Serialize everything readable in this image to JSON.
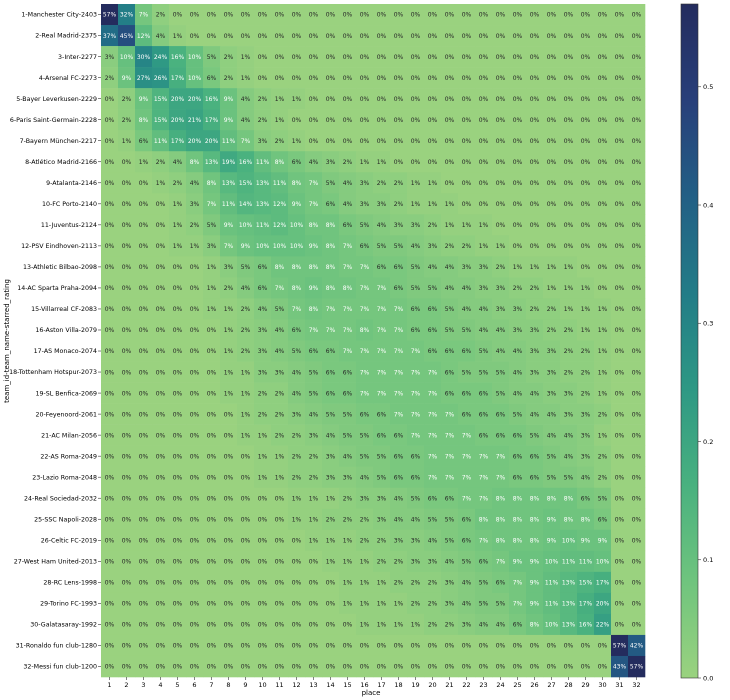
{
  "chart_data": {
    "type": "heatmap",
    "xlabel": "place",
    "ylabel": "team_id-team_name-starred_rating",
    "x_categories": [
      "1",
      "2",
      "3",
      "4",
      "5",
      "6",
      "7",
      "8",
      "9",
      "10",
      "11",
      "12",
      "13",
      "14",
      "15",
      "16",
      "17",
      "18",
      "19",
      "20",
      "21",
      "22",
      "23",
      "24",
      "25",
      "26",
      "27",
      "28",
      "29",
      "30",
      "31",
      "32"
    ],
    "y_categories": [
      "1-Manchester City-2403",
      "2-Real Madrid-2375",
      "3-Inter-2277",
      "4-Arsenal FC-2273",
      "5-Bayer Leverkusen-2229",
      "6-Paris Saint-Germain-2228",
      "7-Bayern München-2217",
      "8-Atlético Madrid-2166",
      "9-Atalanta-2146",
      "10-FC Porto-2140",
      "11-Juventus-2124",
      "12-PSV Eindhoven-2113",
      "13-Athletic Bilbao-2098",
      "14-AC Sparta Praha-2094",
      "15-Villarreal CF-2083",
      "16-Aston Villa-2079",
      "17-AS Monaco-2074",
      "18-Tottenham Hotspur-2073",
      "19-SL Benfica-2069",
      "20-Feyenoord-2061",
      "21-AC Milan-2056",
      "22-AS Roma-2049",
      "23-Lazio Roma-2048",
      "24-Real Sociedad-2032",
      "25-SSC Napoli-2028",
      "26-Celtic FC-2019",
      "27-West Ham United-2013",
      "28-RC Lens-1998",
      "29-Torino FC-1993",
      "30-Galatasaray-1992",
      "31-Ronaldo fun club-1280",
      "32-Messi fun club-1200"
    ],
    "values_percent": [
      [
        57,
        32,
        7,
        2,
        0,
        0,
        0,
        0,
        0,
        0,
        0,
        0,
        0,
        0,
        0,
        0,
        0,
        0,
        0,
        0,
        0,
        0,
        0,
        0,
        0,
        0,
        0,
        0,
        0,
        0,
        0,
        0
      ],
      [
        37,
        45,
        12,
        4,
        1,
        0,
        0,
        0,
        0,
        0,
        0,
        0,
        0,
        0,
        0,
        0,
        0,
        0,
        0,
        0,
        0,
        0,
        0,
        0,
        0,
        0,
        0,
        0,
        0,
        0,
        0,
        0
      ],
      [
        3,
        10,
        30,
        24,
        16,
        10,
        5,
        2,
        1,
        0,
        0,
        0,
        0,
        0,
        0,
        0,
        0,
        0,
        0,
        0,
        0,
        0,
        0,
        0,
        0,
        0,
        0,
        0,
        0,
        0,
        0,
        0
      ],
      [
        2,
        9,
        27,
        26,
        17,
        10,
        6,
        2,
        1,
        0,
        0,
        0,
        0,
        0,
        0,
        0,
        0,
        0,
        0,
        0,
        0,
        0,
        0,
        0,
        0,
        0,
        0,
        0,
        0,
        0,
        0,
        0
      ],
      [
        0,
        2,
        9,
        15,
        20,
        20,
        16,
        9,
        4,
        2,
        1,
        1,
        0,
        0,
        0,
        0,
        0,
        0,
        0,
        0,
        0,
        0,
        0,
        0,
        0,
        0,
        0,
        0,
        0,
        0,
        0,
        0
      ],
      [
        0,
        2,
        8,
        15,
        20,
        21,
        17,
        9,
        4,
        2,
        1,
        0,
        0,
        0,
        0,
        0,
        0,
        0,
        0,
        0,
        0,
        0,
        0,
        0,
        0,
        0,
        0,
        0,
        0,
        0,
        0,
        0
      ],
      [
        0,
        1,
        6,
        11,
        17,
        20,
        20,
        11,
        7,
        3,
        2,
        1,
        0,
        0,
        0,
        0,
        0,
        0,
        0,
        0,
        0,
        0,
        0,
        0,
        0,
        0,
        0,
        0,
        0,
        0,
        0,
        0
      ],
      [
        0,
        0,
        1,
        2,
        4,
        8,
        13,
        19,
        16,
        11,
        8,
        6,
        4,
        3,
        2,
        1,
        1,
        0,
        0,
        0,
        0,
        0,
        0,
        0,
        0,
        0,
        0,
        0,
        0,
        0,
        0,
        0
      ],
      [
        0,
        0,
        0,
        1,
        2,
        4,
        8,
        13,
        15,
        13,
        11,
        8,
        7,
        5,
        4,
        3,
        2,
        2,
        1,
        1,
        0,
        0,
        0,
        0,
        0,
        0,
        0,
        0,
        0,
        0,
        0,
        0
      ],
      [
        0,
        0,
        0,
        0,
        1,
        3,
        7,
        11,
        14,
        13,
        12,
        9,
        7,
        6,
        4,
        3,
        3,
        2,
        1,
        1,
        1,
        0,
        0,
        0,
        0,
        0,
        0,
        0,
        0,
        0,
        0,
        0
      ],
      [
        0,
        0,
        0,
        0,
        1,
        2,
        5,
        9,
        10,
        11,
        12,
        10,
        8,
        8,
        6,
        5,
        4,
        3,
        3,
        2,
        1,
        1,
        1,
        0,
        0,
        0,
        0,
        0,
        0,
        0,
        0,
        0
      ],
      [
        0,
        0,
        0,
        0,
        1,
        1,
        3,
        7,
        9,
        10,
        10,
        10,
        9,
        8,
        7,
        6,
        5,
        5,
        4,
        3,
        2,
        2,
        1,
        1,
        0,
        0,
        0,
        0,
        0,
        0,
        0,
        0
      ],
      [
        0,
        0,
        0,
        0,
        0,
        0,
        1,
        3,
        5,
        6,
        8,
        8,
        8,
        8,
        7,
        7,
        6,
        6,
        5,
        4,
        4,
        3,
        3,
        2,
        1,
        1,
        1,
        1,
        0,
        0,
        0,
        0
      ],
      [
        0,
        0,
        0,
        0,
        0,
        0,
        1,
        2,
        4,
        6,
        7,
        8,
        9,
        8,
        8,
        7,
        7,
        6,
        5,
        5,
        4,
        4,
        3,
        3,
        2,
        2,
        1,
        1,
        1,
        0,
        0,
        0
      ],
      [
        0,
        0,
        0,
        0,
        0,
        0,
        1,
        1,
        2,
        4,
        5,
        7,
        8,
        7,
        7,
        7,
        7,
        7,
        6,
        6,
        5,
        4,
        4,
        3,
        3,
        2,
        2,
        1,
        1,
        1,
        0,
        0
      ],
      [
        0,
        0,
        0,
        0,
        0,
        0,
        0,
        1,
        2,
        3,
        4,
        6,
        7,
        7,
        7,
        8,
        7,
        7,
        6,
        6,
        5,
        5,
        4,
        4,
        3,
        3,
        2,
        2,
        1,
        1,
        0,
        0
      ],
      [
        0,
        0,
        0,
        0,
        0,
        0,
        0,
        1,
        2,
        3,
        4,
        5,
        6,
        6,
        7,
        7,
        7,
        7,
        7,
        6,
        6,
        6,
        5,
        4,
        4,
        3,
        3,
        2,
        2,
        1,
        0,
        0
      ],
      [
        0,
        0,
        0,
        0,
        0,
        0,
        0,
        1,
        1,
        3,
        3,
        4,
        5,
        6,
        6,
        7,
        7,
        7,
        7,
        7,
        6,
        5,
        5,
        5,
        4,
        3,
        3,
        2,
        2,
        1,
        0,
        0
      ],
      [
        0,
        0,
        0,
        0,
        0,
        0,
        0,
        1,
        1,
        2,
        2,
        4,
        5,
        6,
        6,
        7,
        7,
        7,
        7,
        7,
        6,
        6,
        6,
        5,
        4,
        4,
        3,
        3,
        2,
        1,
        0,
        0
      ],
      [
        0,
        0,
        0,
        0,
        0,
        0,
        0,
        0,
        1,
        2,
        2,
        3,
        4,
        5,
        5,
        6,
        6,
        7,
        7,
        7,
        7,
        6,
        6,
        6,
        5,
        4,
        4,
        3,
        3,
        2,
        0,
        0
      ],
      [
        0,
        0,
        0,
        0,
        0,
        0,
        0,
        0,
        1,
        1,
        2,
        2,
        3,
        4,
        5,
        5,
        6,
        6,
        7,
        7,
        7,
        7,
        6,
        6,
        6,
        5,
        4,
        4,
        3,
        1,
        0,
        0
      ],
      [
        0,
        0,
        0,
        0,
        0,
        0,
        0,
        0,
        0,
        1,
        1,
        2,
        2,
        3,
        4,
        5,
        5,
        6,
        6,
        7,
        7,
        7,
        7,
        7,
        6,
        6,
        5,
        4,
        3,
        2,
        0,
        0
      ],
      [
        0,
        0,
        0,
        0,
        0,
        0,
        0,
        0,
        0,
        1,
        1,
        2,
        2,
        3,
        3,
        4,
        5,
        6,
        6,
        7,
        7,
        7,
        7,
        7,
        6,
        6,
        5,
        5,
        4,
        2,
        0,
        0
      ],
      [
        0,
        0,
        0,
        0,
        0,
        0,
        0,
        0,
        0,
        0,
        0,
        1,
        1,
        1,
        2,
        3,
        3,
        4,
        5,
        6,
        6,
        7,
        7,
        8,
        8,
        8,
        8,
        8,
        6,
        5,
        0,
        0
      ],
      [
        0,
        0,
        0,
        0,
        0,
        0,
        0,
        0,
        0,
        0,
        0,
        1,
        1,
        2,
        2,
        2,
        3,
        4,
        4,
        5,
        5,
        6,
        8,
        8,
        8,
        8,
        9,
        8,
        8,
        6,
        0,
        0
      ],
      [
        0,
        0,
        0,
        0,
        0,
        0,
        0,
        0,
        0,
        0,
        0,
        0,
        1,
        1,
        1,
        2,
        2,
        3,
        3,
        4,
        5,
        6,
        7,
        8,
        8,
        8,
        9,
        10,
        9,
        9,
        0,
        0
      ],
      [
        0,
        0,
        0,
        0,
        0,
        0,
        0,
        0,
        0,
        0,
        0,
        0,
        0,
        1,
        1,
        1,
        2,
        2,
        3,
        3,
        4,
        5,
        6,
        7,
        9,
        9,
        10,
        11,
        11,
        10,
        0,
        0
      ],
      [
        0,
        0,
        0,
        0,
        0,
        0,
        0,
        0,
        0,
        0,
        0,
        0,
        0,
        0,
        1,
        1,
        1,
        2,
        2,
        2,
        3,
        4,
        5,
        6,
        7,
        9,
        11,
        13,
        15,
        17,
        0,
        0
      ],
      [
        0,
        0,
        0,
        0,
        0,
        0,
        0,
        0,
        0,
        0,
        0,
        0,
        0,
        0,
        1,
        1,
        1,
        1,
        2,
        2,
        3,
        4,
        5,
        5,
        7,
        9,
        11,
        13,
        17,
        20,
        0,
        0
      ],
      [
        0,
        0,
        0,
        0,
        0,
        0,
        0,
        0,
        0,
        0,
        0,
        0,
        0,
        0,
        0,
        1,
        1,
        1,
        1,
        2,
        2,
        3,
        4,
        4,
        6,
        8,
        10,
        13,
        16,
        22,
        0,
        0
      ],
      [
        0,
        0,
        0,
        0,
        0,
        0,
        0,
        0,
        0,
        0,
        0,
        0,
        0,
        0,
        0,
        0,
        0,
        0,
        0,
        0,
        0,
        0,
        0,
        0,
        0,
        0,
        0,
        0,
        0,
        0,
        57,
        42
      ],
      [
        0,
        0,
        0,
        0,
        0,
        0,
        0,
        0,
        0,
        0,
        0,
        0,
        0,
        0,
        0,
        0,
        0,
        0,
        0,
        0,
        0,
        0,
        0,
        0,
        0,
        0,
        0,
        0,
        0,
        0,
        43,
        57
      ]
    ],
    "colorbar": {
      "range": [
        0.0,
        0.57
      ],
      "ticks": [
        "0.0",
        "0.1",
        "0.2",
        "0.3",
        "0.4",
        "0.5"
      ],
      "tick_values": [
        0.0,
        0.1,
        0.2,
        0.3,
        0.4,
        0.5
      ],
      "colormap_stops": [
        "#9ad27f",
        "#6fc47e",
        "#49b17f",
        "#2e9884",
        "#227c87",
        "#225f85",
        "#283f7a",
        "#242c5e"
      ]
    },
    "value_format": "percent"
  }
}
